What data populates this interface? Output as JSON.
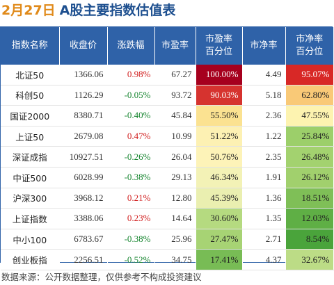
{
  "header": {
    "date": "2月27日",
    "title": "A股主要指数估值表"
  },
  "table": {
    "columns": [
      "指数名称",
      "收盘价",
      "涨跌幅",
      "市盈率",
      "市盈率\n百分位",
      "市净率",
      "市净率\n百分位"
    ],
    "rows": [
      {
        "name": "北证50",
        "close": "1366.06",
        "change": "0.98%",
        "pe": "67.27",
        "pe_pct": "100.00%",
        "pb": "4.49",
        "pb_pct": "95.07%",
        "pe_color": "#a6001e",
        "pe_text": "#ffffff",
        "pb_color": "#d82826",
        "pb_text": "#ffffff"
      },
      {
        "name": "科创50",
        "close": "1126.29",
        "change": "-0.05%",
        "pe": "93.72",
        "pe_pct": "90.03%",
        "pb": "5.18",
        "pb_pct": "62.80%",
        "pe_color": "#d6332f",
        "pe_text": "#ffffff",
        "pb_color": "#f9c977",
        "pb_text": "#222222"
      },
      {
        "name": "国证2000",
        "close": "8380.71",
        "change": "-0.40%",
        "pe": "45.84",
        "pe_pct": "55.50%",
        "pb": "2.36",
        "pb_pct": "47.55%",
        "pe_color": "#fbe291",
        "pe_text": "#222222",
        "pb_color": "#fdf3b0",
        "pb_text": "#222222"
      },
      {
        "name": "上证50",
        "close": "2679.08",
        "change": "0.47%",
        "pe": "10.99",
        "pe_pct": "51.22%",
        "pb": "1.22",
        "pb_pct": "25.84%",
        "pe_color": "#fdf1b3",
        "pe_text": "#222222",
        "pb_color": "#9ccf6a",
        "pb_text": "#222222"
      },
      {
        "name": "深证成指",
        "close": "10927.51",
        "change": "-0.26%",
        "pe": "26.04",
        "pe_pct": "50.76%",
        "pb": "2.35",
        "pb_pct": "26.48%",
        "pe_color": "#fdf3b8",
        "pe_text": "#222222",
        "pb_color": "#a3d26f",
        "pb_text": "#222222"
      },
      {
        "name": "中证500",
        "close": "6028.99",
        "change": "-0.38%",
        "pe": "29.13",
        "pe_pct": "46.34%",
        "pb": "1.91",
        "pb_pct": "26.12%",
        "pe_color": "#f3f2b6",
        "pe_text": "#222222",
        "pb_color": "#a1d06d",
        "pb_text": "#222222"
      },
      {
        "name": "沪深300",
        "close": "3968.12",
        "change": "0.21%",
        "pe": "12.80",
        "pe_pct": "45.39%",
        "pb": "1.36",
        "pb_pct": "18.51%",
        "pe_color": "#eaefb0",
        "pe_text": "#222222",
        "pb_color": "#7fbf57",
        "pb_text": "#222222"
      },
      {
        "name": "上证指数",
        "close": "3388.06",
        "change": "0.23%",
        "pe": "14.64",
        "pe_pct": "30.60%",
        "pb": "1.35",
        "pb_pct": "12.03%",
        "pe_color": "#b5da80",
        "pe_text": "#222222",
        "pb_color": "#5faf45",
        "pb_text": "#222222"
      },
      {
        "name": "中小100",
        "close": "6783.67",
        "change": "-0.38%",
        "pe": "25.96",
        "pe_pct": "27.47%",
        "pb": "2.71",
        "pb_pct": "8.54%",
        "pe_color": "#a7d374",
        "pe_text": "#222222",
        "pb_color": "#4aa43b",
        "pb_text": "#222222"
      },
      {
        "name": "创业板指",
        "close": "2256.51",
        "change": "-0.52%",
        "pe": "34.75",
        "pe_pct": "17.41%",
        "pb": "4.37",
        "pb_pct": "32.67%",
        "pe_color": "#78bc55",
        "pe_text": "#222222",
        "pb_color": "#bcdc86",
        "pb_text": "#222222"
      }
    ]
  },
  "footer": {
    "source": "数据来源：公开数据整理，仅供参考不构成投资建议"
  },
  "colors": {
    "header_bg": "#2f62a8",
    "date": "#e08a1a",
    "title": "#1d4f8f",
    "up": "#d12020",
    "down": "#16852f"
  }
}
